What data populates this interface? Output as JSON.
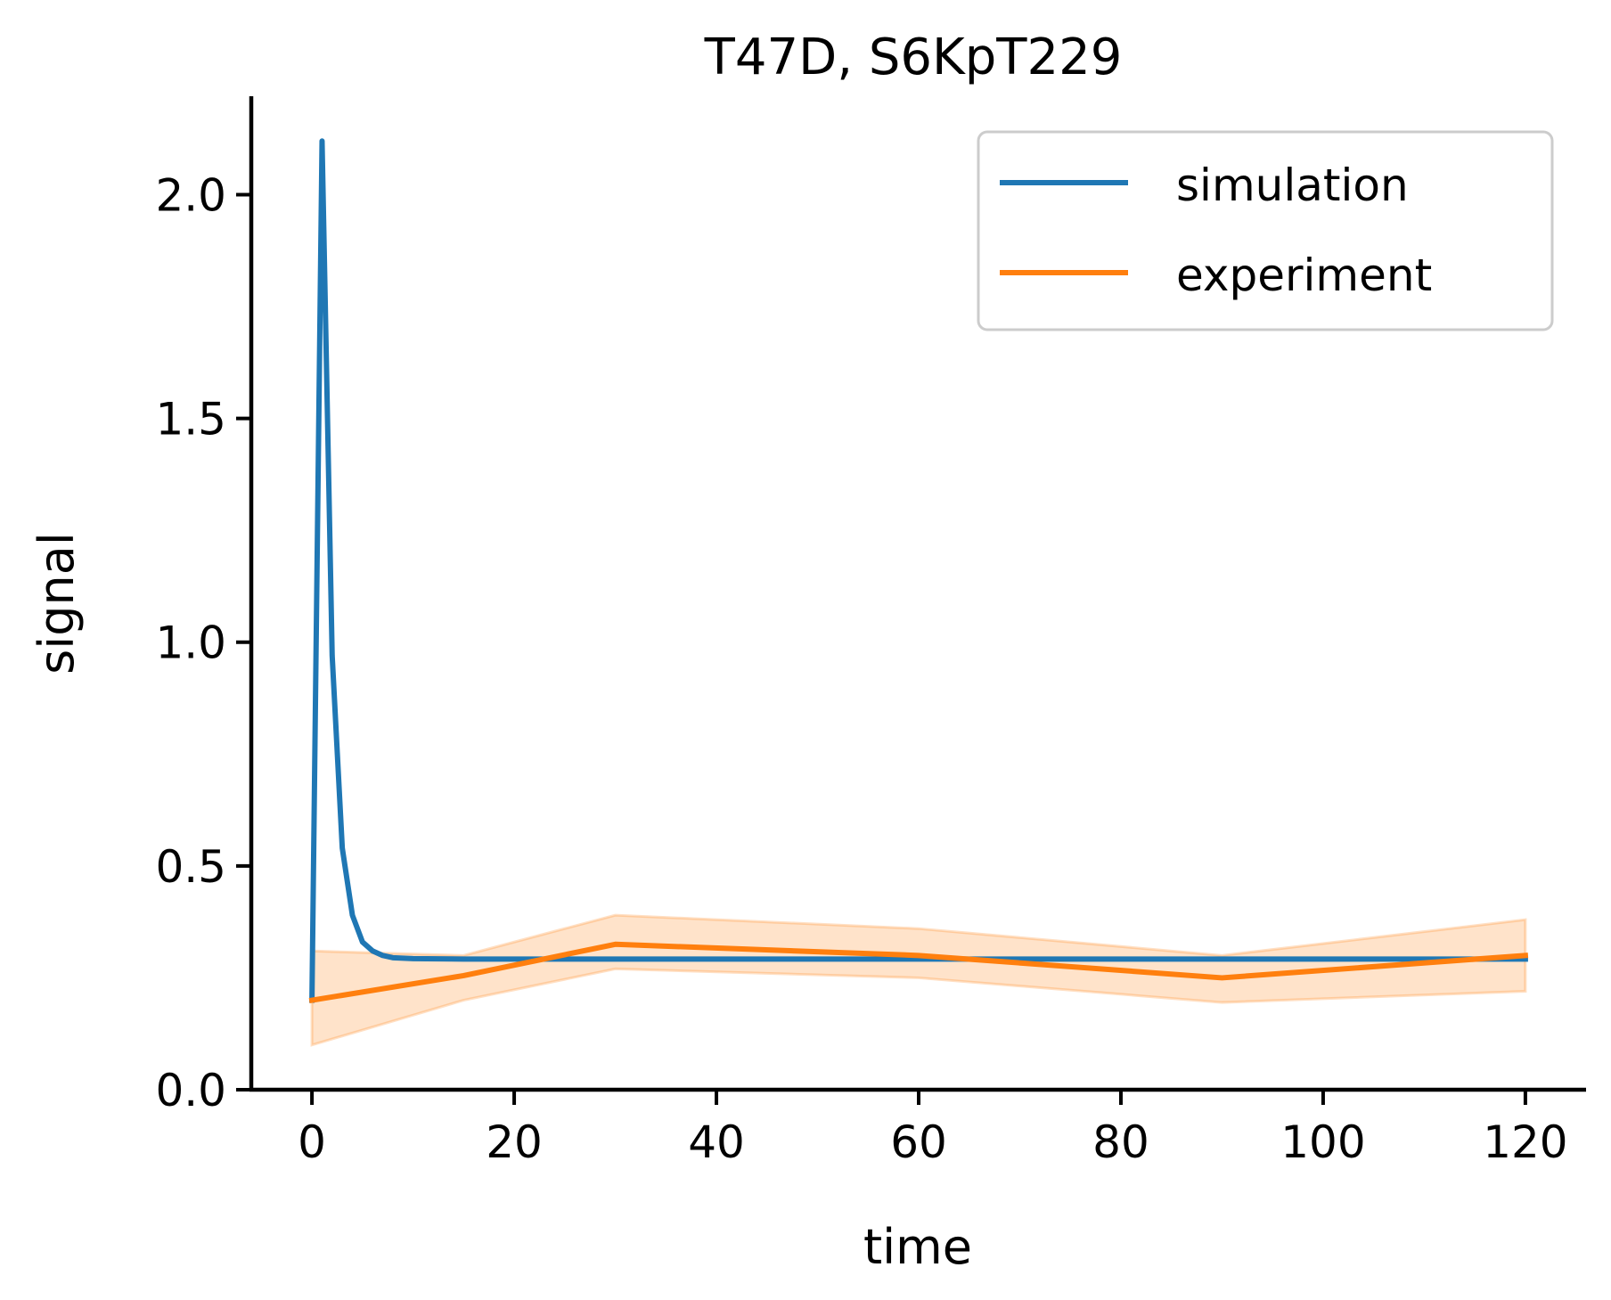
{
  "chart_data": {
    "type": "line",
    "title": "T47D, S6KpT229",
    "xlabel": "time",
    "ylabel": "signal",
    "xlim": [
      -6,
      126
    ],
    "ylim": [
      0,
      2.22
    ],
    "xticks": [
      0,
      20,
      40,
      60,
      80,
      100,
      120
    ],
    "xtick_labels": [
      "0",
      "20",
      "40",
      "60",
      "80",
      "100",
      "120"
    ],
    "yticks": [
      0.0,
      0.5,
      1.0,
      1.5,
      2.0
    ],
    "ytick_labels": [
      "0.0",
      "0.5",
      "1.0",
      "1.5",
      "2.0"
    ],
    "grid": false,
    "legend_position": "top-right",
    "series": [
      {
        "name": "simulation",
        "color": "#1f77b4",
        "x": [
          0,
          1,
          2,
          3,
          4,
          5,
          6,
          7,
          8,
          10,
          15,
          20,
          30,
          60,
          90,
          120
        ],
        "y": [
          0.2,
          2.12,
          0.97,
          0.54,
          0.39,
          0.33,
          0.31,
          0.3,
          0.295,
          0.293,
          0.292,
          0.292,
          0.292,
          0.292,
          0.292,
          0.292
        ]
      },
      {
        "name": "experiment",
        "color": "#ff7f0e",
        "x": [
          0,
          15,
          30,
          60,
          90,
          120
        ],
        "y": [
          0.2,
          0.255,
          0.325,
          0.3,
          0.25,
          0.3
        ],
        "lower": [
          0.1,
          0.2,
          0.27,
          0.25,
          0.195,
          0.22
        ],
        "upper": [
          0.31,
          0.3,
          0.39,
          0.36,
          0.3,
          0.38
        ]
      }
    ]
  }
}
